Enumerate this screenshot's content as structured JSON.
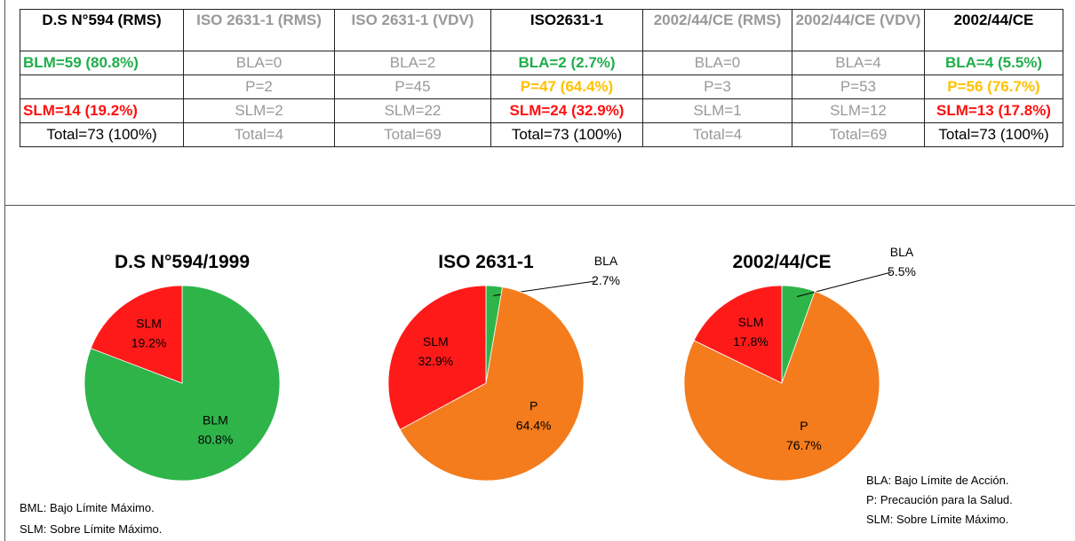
{
  "table": {
    "header": [
      "D.S N°594 (RMS)",
      "ISO 2631-1 (RMS)",
      "ISO 2631-1 (VDV)",
      "ISO2631-1",
      "2002/44/CE (RMS)",
      "2002/44/CE (VDV)",
      "2002/44/CE"
    ],
    "rows": [
      [
        "BLM=59 (80.8%)",
        "BLA=0",
        "BLA=2",
        "BLA=2 (2.7%)",
        "BLA=0",
        "BLA=4",
        "BLA=4 (5.5%)"
      ],
      [
        null,
        "P=2",
        "P=45",
        "P=47 (64.4%)",
        "P=3",
        "P=53",
        "P=56 (76.7%)"
      ],
      [
        "SLM=14 (19.2%)",
        "SLM=2",
        "SLM=22",
        "SLM=24 (32.9%)",
        "SLM=1",
        "SLM=12",
        "SLM=13 (17.8%)"
      ],
      [
        "Total=73 (100%)",
        "Total=4",
        "Total=69",
        "Total=73 (100%)",
        "Total=4",
        "Total=69",
        "Total=73 (100%)"
      ]
    ]
  },
  "chart_data": [
    {
      "type": "pie",
      "title": "D.S N°594/1999",
      "categories": [
        "BLM",
        "SLM"
      ],
      "values": [
        80.8,
        19.2
      ],
      "value_labels": [
        "80.8%",
        "19.2%"
      ],
      "colors": [
        "#2fb44a",
        "#ff1a1a"
      ]
    },
    {
      "type": "pie",
      "title": "ISO 2631-1",
      "categories": [
        "BLA",
        "P",
        "SLM"
      ],
      "values": [
        2.7,
        64.4,
        32.9
      ],
      "value_labels": [
        "2.7%",
        "64.4%",
        "32.9%"
      ],
      "colors": [
        "#2fb44a",
        "#f47c1c",
        "#ff1a1a"
      ]
    },
    {
      "type": "pie",
      "title": "2002/44/CE",
      "categories": [
        "BLA",
        "P",
        "SLM"
      ],
      "values": [
        5.5,
        76.7,
        17.8
      ],
      "value_labels": [
        "5.5%",
        "76.7%",
        "17.8%"
      ],
      "colors": [
        "#2fb44a",
        "#f47c1c",
        "#ff1a1a"
      ]
    }
  ],
  "notes_left": [
    "BML: Bajo Límite Máximo.",
    "SLM: Sobre Límite Máximo."
  ],
  "notes_right": [
    "BLA: Bajo Límite de Acción.",
    "P: Precaución para la Salud.",
    "SLM: Sobre Límite Máximo."
  ]
}
